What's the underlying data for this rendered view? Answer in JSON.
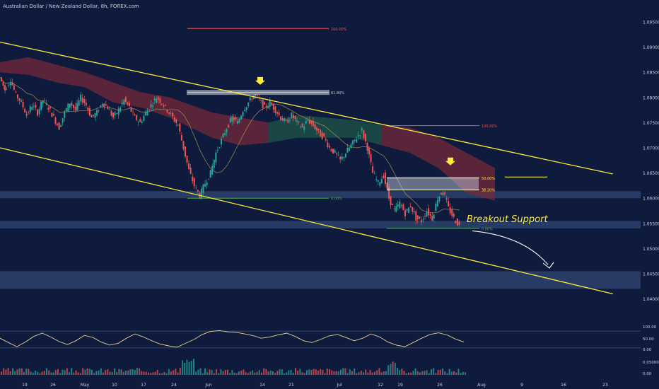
{
  "header": {
    "title": "Australian Dollar / New Zealand Dollar, 8h, FOREX.com"
  },
  "colors": {
    "background": "#0f1b3d",
    "candle_up": "#26a69a",
    "candle_down": "#ef5350",
    "channel": "#ffeb3b",
    "fib_high": "#ef5350",
    "fib_low": "#4caf50",
    "support_zone": "#3d5686",
    "cloud_bear": "#7b2a3a",
    "cloud_bull": "#1f5a4a",
    "oscillator": "#e8d391",
    "arrow": "#ffeb3b"
  },
  "annotation": {
    "breakout_label": "Breakout Support"
  },
  "chart_data": {
    "type": "candlestick",
    "title": "Australian Dollar / New Zealand Dollar, 8h, FOREX.com",
    "y_ticks": [
      1.095,
      1.09,
      1.085,
      1.08,
      1.075,
      1.07,
      1.065,
      1.06,
      1.055,
      1.05,
      1.045,
      1.04
    ],
    "y_tick_labels": [
      "1.09500",
      "1.09000",
      "1.08500",
      "1.08000",
      "1.07500",
      "1.07000",
      "1.06500",
      "1.06000",
      "1.05500",
      "1.05000",
      "1.04500",
      "1.04000"
    ],
    "x_tick_labels": [
      "19",
      "26",
      "May",
      "10",
      "17",
      "24",
      "Jun",
      "14",
      "21",
      "Jul",
      "12",
      "19",
      "26",
      "Aug",
      "9",
      "16",
      "23"
    ],
    "price_path": [
      1.084,
      1.0815,
      1.0835,
      1.0805,
      1.079,
      1.0765,
      1.0785,
      1.077,
      1.0795,
      1.078,
      1.076,
      1.074,
      1.077,
      1.079,
      1.0775,
      1.08,
      1.0785,
      1.076,
      1.077,
      1.079,
      1.078,
      1.076,
      1.0775,
      1.0795,
      1.078,
      1.076,
      1.075,
      1.077,
      1.0785,
      1.08,
      1.079,
      1.0775,
      1.076,
      1.0745,
      1.07,
      1.0655,
      1.0625,
      1.0605,
      1.063,
      1.065,
      1.069,
      1.0715,
      1.074,
      1.076,
      1.075,
      1.0775,
      1.079,
      1.0805,
      1.0795,
      1.078,
      1.079,
      1.0775,
      1.076,
      1.075,
      1.0765,
      1.075,
      1.074,
      1.0755,
      1.0745,
      1.073,
      1.072,
      1.07,
      1.069,
      1.0675,
      1.069,
      1.0705,
      1.072,
      1.0735,
      1.07,
      1.065,
      1.063,
      1.0645,
      1.06,
      1.0575,
      1.059,
      1.057,
      1.0585,
      1.056,
      1.0555,
      1.0575,
      1.056,
      1.06,
      1.0615,
      1.058,
      1.056,
      1.0545
    ],
    "channel_upper": [
      {
        "date": "2021-04-13",
        "price": 1.091
      },
      {
        "date": "2021-08-31",
        "price": 1.0648
      }
    ],
    "channel_lower": [
      {
        "date": "2021-04-13",
        "price": 1.07
      },
      {
        "date": "2021-08-31",
        "price": 1.041
      }
    ],
    "fib_levels": [
      {
        "label": "100.00%",
        "price": 1.0937,
        "group": "top"
      },
      {
        "label": "61.80%",
        "price": 1.081,
        "group": "top"
      },
      {
        "label": "0.00%",
        "price": 1.06,
        "group": "top"
      },
      {
        "label": "100.00%",
        "price": 1.0744,
        "group": "bottom"
      },
      {
        "label": "50.00%",
        "price": 1.064,
        "group": "bottom"
      },
      {
        "label": "38.20%",
        "price": 1.0617,
        "group": "bottom"
      },
      {
        "label": "0.00%",
        "price": 1.054,
        "group": "bottom"
      }
    ],
    "support_zones": [
      {
        "from": 1.0614,
        "to": 1.06
      },
      {
        "from": 1.0555,
        "to": 1.054
      },
      {
        "from": 1.0455,
        "to": 1.042
      }
    ],
    "oscillator": {
      "y_tick_labels": [
        "100.00",
        "50.00",
        "0.00"
      ],
      "values": [
        55,
        38,
        22,
        40,
        62,
        75,
        60,
        42,
        30,
        45,
        66,
        58,
        40,
        28,
        35,
        55,
        72,
        60,
        45,
        32,
        25,
        20,
        35,
        50,
        70,
        82,
        85,
        80,
        78,
        72,
        65,
        55,
        60,
        68,
        75,
        62,
        45,
        38,
        50,
        64,
        70,
        58,
        45,
        55,
        72,
        60,
        40,
        28,
        22,
        38,
        55,
        70,
        76,
        68,
        52,
        40
      ]
    },
    "volume_ticks": [
      "0.05000",
      "0.00"
    ]
  }
}
